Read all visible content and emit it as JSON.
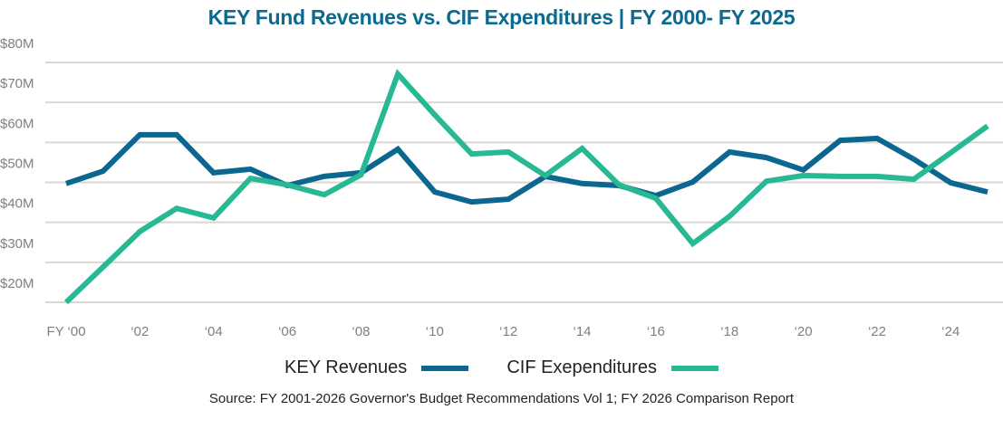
{
  "chart_data": {
    "type": "line",
    "title": "KEY Fund Revenues vs. CIF Expenditures | FY 2000- FY 2025",
    "xlabel": "",
    "ylabel": "",
    "x": [
      2000,
      2001,
      2002,
      2003,
      2004,
      2005,
      2006,
      2007,
      2008,
      2009,
      2010,
      2011,
      2012,
      2013,
      2014,
      2015,
      2016,
      2017,
      2018,
      2019,
      2020,
      2021,
      2022,
      2023,
      2024,
      2025
    ],
    "xtick_labels": [
      {
        "year": 2000,
        "label": "FY ‘00"
      },
      {
        "year": 2002,
        "label": "‘02"
      },
      {
        "year": 2004,
        "label": "‘04"
      },
      {
        "year": 2006,
        "label": "‘06"
      },
      {
        "year": 2008,
        "label": "‘08"
      },
      {
        "year": 2010,
        "label": "‘10"
      },
      {
        "year": 2012,
        "label": "‘12"
      },
      {
        "year": 2014,
        "label": "‘14"
      },
      {
        "year": 2016,
        "label": "‘16"
      },
      {
        "year": 2018,
        "label": "‘18"
      },
      {
        "year": 2020,
        "label": "‘20"
      },
      {
        "year": 2022,
        "label": "‘22"
      },
      {
        "year": 2024,
        "label": "‘24"
      }
    ],
    "yticks": [
      {
        "value": 80,
        "label": "$80M"
      },
      {
        "value": 70,
        "label": "$70M"
      },
      {
        "value": 60,
        "label": "$60M"
      },
      {
        "value": 50,
        "label": "$50M"
      },
      {
        "value": 40,
        "label": "$40M"
      },
      {
        "value": 30,
        "label": "$30M"
      },
      {
        "value": 20,
        "label": "$20M"
      }
    ],
    "ylim": [
      20,
      80
    ],
    "yunit": "$M",
    "grid": true,
    "legend_position": "bottom",
    "series": [
      {
        "name": "KEY Revenues",
        "color": "#0b6790",
        "values": [
          49.7,
          52.8,
          61.9,
          61.9,
          52.4,
          53.3,
          49.2,
          51.5,
          52.4,
          58.3,
          47.6,
          45.1,
          45.8,
          51.5,
          49.7,
          49.2,
          46.7,
          50.1,
          57.6,
          56.2,
          53.1,
          60.5,
          61.0,
          55.8,
          49.9,
          47.6
        ]
      },
      {
        "name": "CIF Exependitures",
        "color": "#27b994",
        "values": [
          20.0,
          28.8,
          37.7,
          43.5,
          41.1,
          51.0,
          49.4,
          46.9,
          51.9,
          77.1,
          66.9,
          57.1,
          57.6,
          51.7,
          58.5,
          49.4,
          46.0,
          34.7,
          41.5,
          50.3,
          51.7,
          51.5,
          51.5,
          50.8,
          57.4,
          64.1
        ]
      }
    ],
    "source": "Source: FY 2001-2026 Governor's Budget Recommendations Vol 1; FY 2026 Comparison Report"
  }
}
